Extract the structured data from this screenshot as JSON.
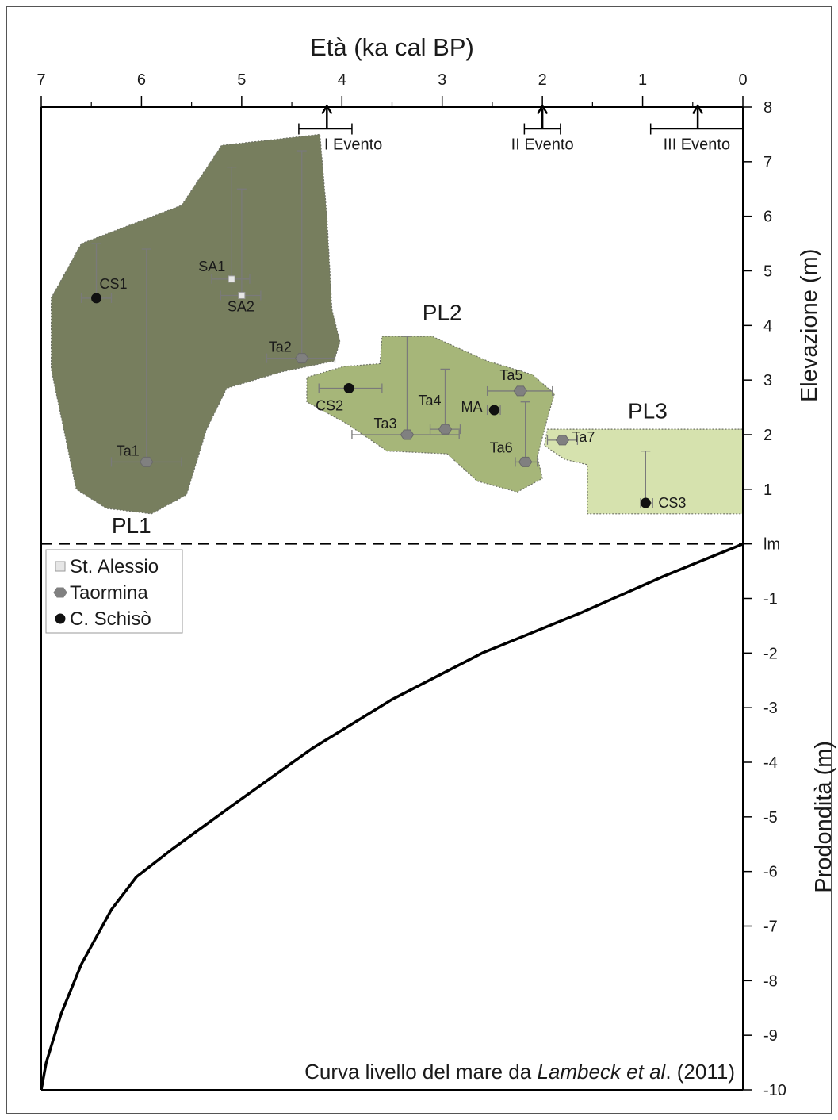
{
  "chart_data": {
    "type": "scatter",
    "title": "",
    "xlabel": "Età (ka cal BP)",
    "ylabel_upper": "Elevazione (m)",
    "ylabel_lower": "Prodondità (m)",
    "xlim": [
      7,
      0
    ],
    "ylim": [
      -10,
      8
    ],
    "x_reversed": true,
    "xticks": [
      7,
      6,
      5,
      4,
      3,
      2,
      1,
      0
    ],
    "yticks": [
      {
        "v": 8,
        "label": "8"
      },
      {
        "v": 7,
        "label": "7"
      },
      {
        "v": 6,
        "label": "6"
      },
      {
        "v": 5,
        "label": "5"
      },
      {
        "v": 4,
        "label": "4"
      },
      {
        "v": 3,
        "label": "3"
      },
      {
        "v": 2,
        "label": "2"
      },
      {
        "v": 1,
        "label": "1"
      },
      {
        "v": 0,
        "label": "lm"
      },
      {
        "v": -1,
        "label": "-1"
      },
      {
        "v": -2,
        "label": "-2"
      },
      {
        "v": -3,
        "label": "-3"
      },
      {
        "v": -4,
        "label": "-4"
      },
      {
        "v": -5,
        "label": "-5"
      },
      {
        "v": -6,
        "label": "-6"
      },
      {
        "v": -7,
        "label": "-7"
      },
      {
        "v": -8,
        "label": "-8"
      },
      {
        "v": -9,
        "label": "-9"
      },
      {
        "v": -10,
        "label": "-10"
      }
    ],
    "mean_sea_level": 0,
    "legend": {
      "placement": "upper-left of lower panel",
      "entries": [
        {
          "label": "St. Alessio",
          "marker": "square",
          "color": "#e6e6e6"
        },
        {
          "label": "Taormina",
          "marker": "hexagon",
          "color": "#808080"
        },
        {
          "label": "C. Schisò",
          "marker": "circle",
          "color": "#111111"
        }
      ]
    },
    "groups": [
      {
        "label": "PL1",
        "color": "#777e5e",
        "outline": [
          [
            6.6,
            5.5
          ],
          [
            5.6,
            6.2
          ],
          [
            5.2,
            7.3
          ],
          [
            4.7,
            7.4
          ],
          [
            4.22,
            7.5
          ],
          [
            4.15,
            6.0
          ],
          [
            4.1,
            4.3
          ],
          [
            4.02,
            3.7
          ],
          [
            4.08,
            3.35
          ],
          [
            4.6,
            3.15
          ],
          [
            5.15,
            2.85
          ],
          [
            5.35,
            2.1
          ],
          [
            5.55,
            0.9
          ],
          [
            5.9,
            0.55
          ],
          [
            6.35,
            0.65
          ],
          [
            6.65,
            1.0
          ],
          [
            6.9,
            3.2
          ],
          [
            6.9,
            4.5
          ]
        ]
      },
      {
        "label": "PL2",
        "color": "#a6b679",
        "outline": [
          [
            3.6,
            3.8
          ],
          [
            3.1,
            3.8
          ],
          [
            2.55,
            3.35
          ],
          [
            2.1,
            3.1
          ],
          [
            1.88,
            2.75
          ],
          [
            1.95,
            2.3
          ],
          [
            2.05,
            1.6
          ],
          [
            2.0,
            1.2
          ],
          [
            2.25,
            0.95
          ],
          [
            2.65,
            1.15
          ],
          [
            2.95,
            1.65
          ],
          [
            3.55,
            1.7
          ],
          [
            3.95,
            2.2
          ],
          [
            4.35,
            2.6
          ],
          [
            4.35,
            3.05
          ],
          [
            3.98,
            3.25
          ],
          [
            3.62,
            3.3
          ]
        ]
      },
      {
        "label": "PL3",
        "color": "#d6e2ae",
        "outline": [
          [
            1.95,
            2.1
          ],
          [
            0,
            2.1
          ],
          [
            0,
            0.55
          ],
          [
            1.55,
            0.55
          ],
          [
            1.55,
            1.45
          ],
          [
            1.78,
            1.55
          ],
          [
            1.98,
            1.8
          ]
        ]
      }
    ],
    "series": [
      {
        "name": "St. Alessio",
        "points": [
          {
            "label": "SA1",
            "x": 5.1,
            "y": 4.85,
            "xerr": [
              5.3,
              4.92
            ],
            "yerr": [
              null,
              6.9
            ]
          },
          {
            "label": "SA2",
            "x": 5.0,
            "y": 4.55,
            "xerr": [
              5.21,
              4.81
            ],
            "yerr": [
              null,
              6.5
            ]
          }
        ]
      },
      {
        "name": "Taormina",
        "points": [
          {
            "label": "Ta1",
            "x": 5.95,
            "y": 1.5,
            "xerr": [
              6.3,
              5.6
            ],
            "yerr": [
              null,
              5.4
            ]
          },
          {
            "label": "Ta2",
            "x": 4.4,
            "y": 3.4,
            "xerr": [
              4.75,
              4.07
            ],
            "yerr": [
              null,
              7.2
            ]
          },
          {
            "label": "Ta3",
            "x": 3.35,
            "y": 2.0,
            "xerr": [
              3.9,
              2.83
            ],
            "yerr": [
              null,
              3.8
            ]
          },
          {
            "label": "Ta4",
            "x": 2.97,
            "y": 2.1,
            "xerr": [
              3.12,
              2.82
            ],
            "yerr": [
              null,
              3.2
            ]
          },
          {
            "label": "Ta5",
            "x": 2.22,
            "y": 2.8,
            "xerr": [
              2.55,
              1.9
            ],
            "yerr": [
              null,
              null
            ]
          },
          {
            "label": "Ta6",
            "x": 2.17,
            "y": 1.5,
            "xerr": [
              2.27,
              2.05
            ],
            "yerr": [
              null,
              2.6
            ]
          },
          {
            "label": "Ta7",
            "x": 1.8,
            "y": 1.9,
            "xerr": [
              1.95,
              1.65
            ],
            "yerr": [
              null,
              null
            ]
          }
        ]
      },
      {
        "name": "C. Schisò",
        "points": [
          {
            "label": "CS1",
            "x": 6.45,
            "y": 4.5,
            "xerr": [
              6.6,
              6.3
            ],
            "yerr": [
              null,
              5.5
            ]
          },
          {
            "label": "CS2",
            "x": 3.93,
            "y": 2.85,
            "xerr": [
              4.23,
              3.6
            ],
            "yerr": [
              null,
              null
            ]
          },
          {
            "label": "MA",
            "x": 2.48,
            "y": 2.45,
            "xerr": [
              2.55,
              2.42
            ],
            "yerr": [
              null,
              null
            ]
          },
          {
            "label": "CS3",
            "x": 0.97,
            "y": 0.75,
            "xerr": [
              1.02,
              0.9
            ],
            "yerr": [
              null,
              1.7
            ]
          }
        ]
      }
    ],
    "events": [
      {
        "label": "I Evento",
        "x": 4.15,
        "range": [
          4.43,
          3.9
        ],
        "y": 7.6
      },
      {
        "label": "II Evento",
        "x": 2.0,
        "range": [
          2.18,
          1.82
        ],
        "y": 7.6
      },
      {
        "label": "III Evento",
        "x": 0.45,
        "range": [
          0.92,
          0.0
        ],
        "y": 7.6
      }
    ],
    "sea_level_curve": {
      "label_prefix": "Curva livello del mare da ",
      "label_italic": "Lambeck et al",
      "label_suffix": ". (2011)",
      "points": [
        [
          7,
          -10
        ],
        [
          6.95,
          -9.5
        ],
        [
          6.8,
          -8.6
        ],
        [
          6.6,
          -7.7
        ],
        [
          6.3,
          -6.7
        ],
        [
          6.05,
          -6.1
        ],
        [
          5.7,
          -5.6
        ],
        [
          5.1,
          -4.8
        ],
        [
          4.3,
          -3.75
        ],
        [
          3.5,
          -2.85
        ],
        [
          2.6,
          -2.0
        ],
        [
          1.6,
          -1.25
        ],
        [
          0.8,
          -0.6
        ],
        [
          0,
          0
        ]
      ]
    }
  }
}
